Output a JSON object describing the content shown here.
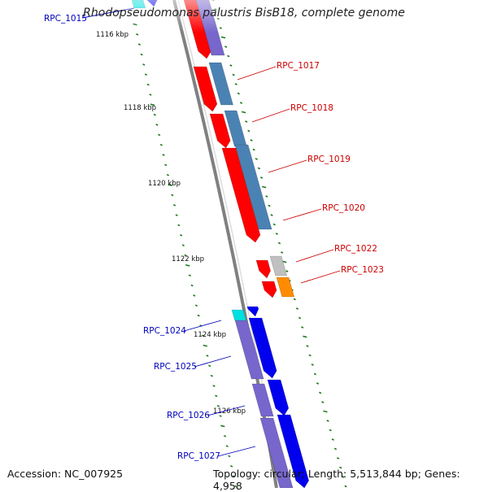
{
  "title": "Rhodopseudomonas palustris BisB18, complete genome",
  "footer": {
    "accession": "Accession: NC_007925",
    "summary": "Topology: circular; Length: 5,513,844 bp; Genes: 4,958"
  },
  "colors": {
    "red_gene": "#ff0000",
    "steel_gene": "#4a82b4",
    "blue_gene": "#0000ee",
    "lavender_gene": "#7766cc",
    "cyan_gene": "#00e0e0",
    "orange_gene": "#ff8c00",
    "grey_gene": "#c0c0c0",
    "backbone": "#808080",
    "tick": "#1a7a1a",
    "label_red": "#cc0000",
    "label_blue": "#0000bb"
  },
  "ruler": [
    {
      "label": "1116 kbp"
    },
    {
      "label": "1118 kbp"
    },
    {
      "label": "1120 kbp"
    },
    {
      "label": "1122 kbp"
    },
    {
      "label": "1124 kbp"
    },
    {
      "label": "1126 kbp"
    }
  ],
  "gene_labels": [
    {
      "name": "RPC_1015",
      "color": "blue"
    },
    {
      "name": "RPC_1017",
      "color": "red"
    },
    {
      "name": "RPC_1018",
      "color": "red"
    },
    {
      "name": "RPC_1019",
      "color": "red"
    },
    {
      "name": "RPC_1020",
      "color": "red"
    },
    {
      "name": "RPC_1022",
      "color": "red"
    },
    {
      "name": "RPC_1023",
      "color": "red"
    },
    {
      "name": "RPC_1024",
      "color": "blue"
    },
    {
      "name": "RPC_1025",
      "color": "blue"
    },
    {
      "name": "RPC_1026",
      "color": "blue"
    },
    {
      "name": "RPC_1027",
      "color": "blue"
    }
  ]
}
